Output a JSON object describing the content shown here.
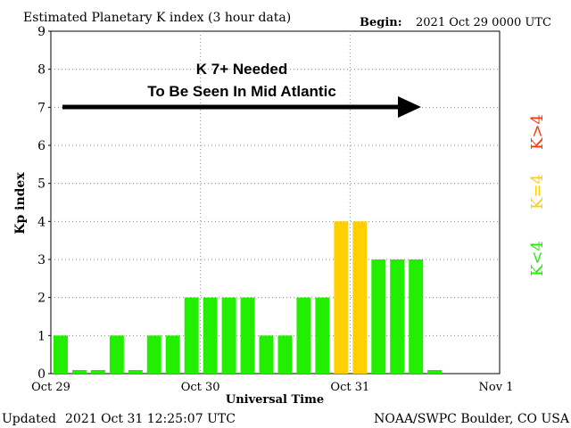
{
  "header": {
    "title": "Estimated Planetary K index (3 hour data)",
    "begin_label": "Begin:",
    "begin_value": "2021 Oct 29 0000 UTC"
  },
  "footer": {
    "updated_label": "Updated",
    "updated_value": "2021 Oct 31 12:25:07 UTC",
    "credit": "NOAA/SWPC Boulder, CO USA"
  },
  "annotation": {
    "line1": "K 7+ Needed",
    "line2": "To Be Seen In Mid Atlantic"
  },
  "legend": {
    "low": "K<4",
    "mid": "K=4",
    "high": "K>4"
  },
  "colors": {
    "low": "#22ee00",
    "mid": "#ffd000",
    "high": "#ff3300",
    "grid": "#888888",
    "text": "#000000"
  },
  "chart_data": {
    "type": "bar",
    "xlabel": "Universal Time",
    "ylabel": "Kp index",
    "ylim": [
      0,
      9
    ],
    "y_ticks": [
      0,
      1,
      2,
      3,
      4,
      5,
      6,
      7,
      8,
      9
    ],
    "x_tick_labels": [
      "Oct 29",
      "Oct 30",
      "Oct 31",
      "Nov 1"
    ],
    "slots_per_day": 8,
    "days": 3,
    "grid": true,
    "x": [
      "Oct 29 00",
      "Oct 29 03",
      "Oct 29 06",
      "Oct 29 09",
      "Oct 29 12",
      "Oct 29 15",
      "Oct 29 18",
      "Oct 29 21",
      "Oct 30 00",
      "Oct 30 03",
      "Oct 30 06",
      "Oct 30 09",
      "Oct 30 12",
      "Oct 30 15",
      "Oct 30 18",
      "Oct 30 21",
      "Oct 31 00",
      "Oct 31 03",
      "Oct 31 06",
      "Oct 31 09",
      "Oct 31 12"
    ],
    "values": [
      1,
      0,
      0,
      1,
      0,
      1,
      1,
      2,
      2,
      2,
      2,
      1,
      1,
      2,
      2,
      4,
      4,
      3,
      3,
      3,
      0
    ]
  }
}
